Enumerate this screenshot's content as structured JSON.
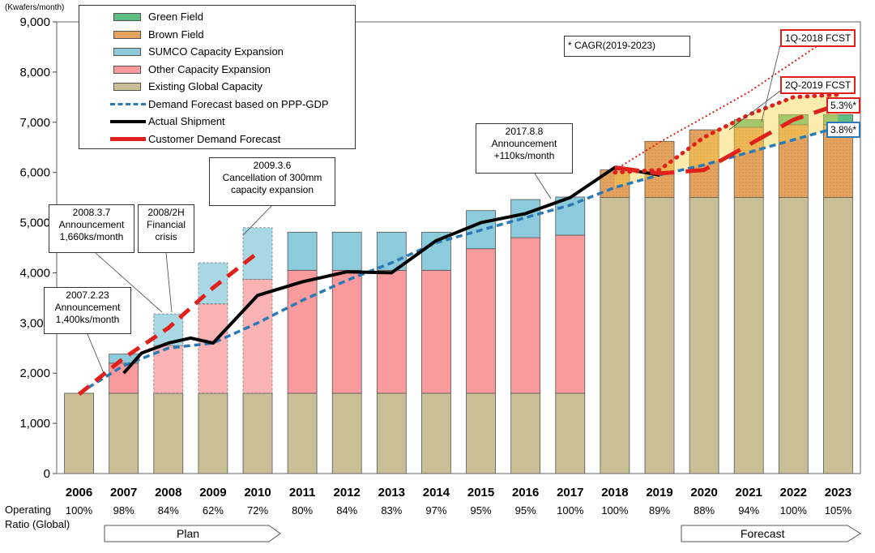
{
  "chart_data": {
    "type": "bar",
    "ylabel": "(Kwafers/month)",
    "ylim": [
      0,
      9000
    ],
    "yticks": [
      "0",
      "1,000",
      "2,000",
      "3,000",
      "4,000",
      "5,000",
      "6,000",
      "7,000",
      "8,000",
      "9,000"
    ],
    "categories": [
      "2006",
      "2007",
      "2008",
      "2009",
      "2010",
      "2011",
      "2012",
      "2013",
      "2014",
      "2015",
      "2016",
      "2017",
      "2018",
      "2019",
      "2020",
      "2021",
      "2022",
      "2023"
    ],
    "operating_ratio_label_1": "Operating",
    "operating_ratio_label_2": "Ratio (Global)",
    "operating_ratio": [
      "100%",
      "98%",
      "84%",
      "62%",
      "72%",
      "80%",
      "84%",
      "83%",
      "97%",
      "95%",
      "95%",
      "100%",
      "100%",
      "89%",
      "88%",
      "94%",
      "100%",
      "105%"
    ],
    "series": [
      {
        "name": "Existing Global Capacity",
        "color": "#c8bf96",
        "values": [
          1600,
          1600,
          1600,
          1600,
          1600,
          1600,
          1600,
          1600,
          1600,
          1600,
          1600,
          1600,
          5500,
          5500,
          5500,
          5500,
          5500,
          5500
        ]
      },
      {
        "name": "Other Capacity Expansion",
        "color": "#f99a9c",
        "values": [
          0,
          600,
          950,
          1780,
          2270,
          2450,
          2450,
          2450,
          2450,
          2880,
          3100,
          3150,
          0,
          0,
          0,
          0,
          0,
          0
        ]
      },
      {
        "name": "SUMCO Capacity Expansion",
        "color": "#8ccbdc",
        "values": [
          0,
          180,
          630,
          820,
          1030,
          760,
          760,
          760,
          760,
          760,
          760,
          760,
          0,
          0,
          0,
          0,
          0,
          0
        ]
      },
      {
        "name": "Brown Field",
        "color": "#e6a35f",
        "values": [
          0,
          0,
          0,
          0,
          0,
          0,
          0,
          0,
          0,
          0,
          0,
          0,
          550,
          1120,
          1350,
          1400,
          1450,
          1450
        ]
      },
      {
        "name": "Green Field",
        "color": "#5dbf83",
        "values": [
          0,
          0,
          0,
          0,
          0,
          0,
          0,
          0,
          0,
          0,
          0,
          0,
          0,
          0,
          0,
          150,
          200,
          200
        ]
      }
    ],
    "lines": [
      {
        "name": "Demand Forecast based on PPP-GDP",
        "color": "#2a7ab8",
        "style": "dashed",
        "x": [
          2006,
          2007,
          2008,
          2009,
          2010,
          2011,
          2012,
          2013,
          2014,
          2015,
          2016,
          2017,
          2018,
          2019,
          2020,
          2021,
          2022,
          2023
        ],
        "values": [
          1600,
          2150,
          2500,
          2600,
          3000,
          3450,
          3850,
          4200,
          4600,
          4850,
          5100,
          5350,
          5700,
          5950,
          6150,
          6400,
          6650,
          6900
        ]
      },
      {
        "name": "Actual Shipment",
        "color": "#000000",
        "style": "solid",
        "x": [
          2007,
          2007.4,
          2008,
          2008.5,
          2009,
          2010,
          2011,
          2012,
          2013,
          2014,
          2015,
          2016,
          2017,
          2018,
          2019
        ],
        "values": [
          2000,
          2400,
          2600,
          2700,
          2600,
          3550,
          3820,
          4020,
          4000,
          4640,
          5000,
          5180,
          5500,
          6100,
          5950
        ]
      },
      {
        "name": "Customer Demand Forecast",
        "color": "#e0201b",
        "style": "dashed-thick",
        "x": [
          2006,
          2007,
          2008,
          2009,
          2010
        ],
        "values": [
          1580,
          2300,
          2900,
          3700,
          4400
        ]
      },
      {
        "name": "2Q-2019 FCST",
        "color": "#e0201b",
        "style": "dotted-thick",
        "x": [
          2018,
          2019,
          2020,
          2021,
          2022,
          2023
        ],
        "values": [
          6000,
          6050,
          6700,
          7150,
          7500,
          7550
        ]
      },
      {
        "name": "2Q-2019 FCST solid",
        "color": "#e0201b",
        "style": "dash-long",
        "x": [
          2018,
          2019,
          2020,
          2021,
          2022,
          2023
        ],
        "values": [
          6100,
          5980,
          6050,
          6550,
          7050,
          7350
        ]
      },
      {
        "name": "1Q-2018 FCST",
        "color": "#e0201b",
        "style": "dotted-thin",
        "x": [
          2018,
          2019,
          2020,
          2021,
          2022,
          2023
        ],
        "values": [
          6050,
          6600,
          7100,
          7600,
          8200,
          8800
        ]
      }
    ],
    "legend": [
      {
        "label": "Green Field",
        "kind": "box",
        "color": "#5dbf83"
      },
      {
        "label": "Brown Field",
        "kind": "box",
        "color": "#e6a35f"
      },
      {
        "label": "SUMCO Capacity Expansion",
        "kind": "box",
        "color": "#8ccbdc"
      },
      {
        "label": "Other Capacity Expansion",
        "kind": "box",
        "color": "#f99a9c"
      },
      {
        "label": "Existing Global Capacity",
        "kind": "box",
        "color": "#c8bf96"
      },
      {
        "label": "Demand Forecast based on PPP-GDP",
        "kind": "dash",
        "color": "#2a7ab8"
      },
      {
        "label": "Actual Shipment",
        "kind": "line",
        "color": "#000000"
      },
      {
        "label": "Customer Demand Forecast",
        "kind": "thick",
        "color": "#e0201b"
      }
    ],
    "annotations": {
      "a2007_l1": "2007.2.23",
      "a2007_l2": "Announcement",
      "a2007_l3": "1,400ks/month",
      "a2008_l1": "2008.3.7",
      "a2008_l2": "Announcement",
      "a2008_l3": "1,660ks/month",
      "a2008h_l1": "2008/2H",
      "a2008h_l2": "Financial",
      "a2008h_l3": "crisis",
      "a2009_l1": "2009.3.6",
      "a2009_l2": "Cancellation of 300mm",
      "a2009_l3": "capacity expansion",
      "a2017_l1": "2017.8.8",
      "a2017_l2": "Announcement",
      "a2017_l3": "+110ks/month",
      "cagr": "* CAGR(2019-2023)",
      "fcst_1q2018": "1Q-2018 FCST",
      "fcst_2q2019": "2Q-2019 FCST",
      "cagr_red": "5.3%*",
      "cagr_blue": "3.8%*",
      "plan": "Plan",
      "forecast": "Forecast"
    }
  }
}
